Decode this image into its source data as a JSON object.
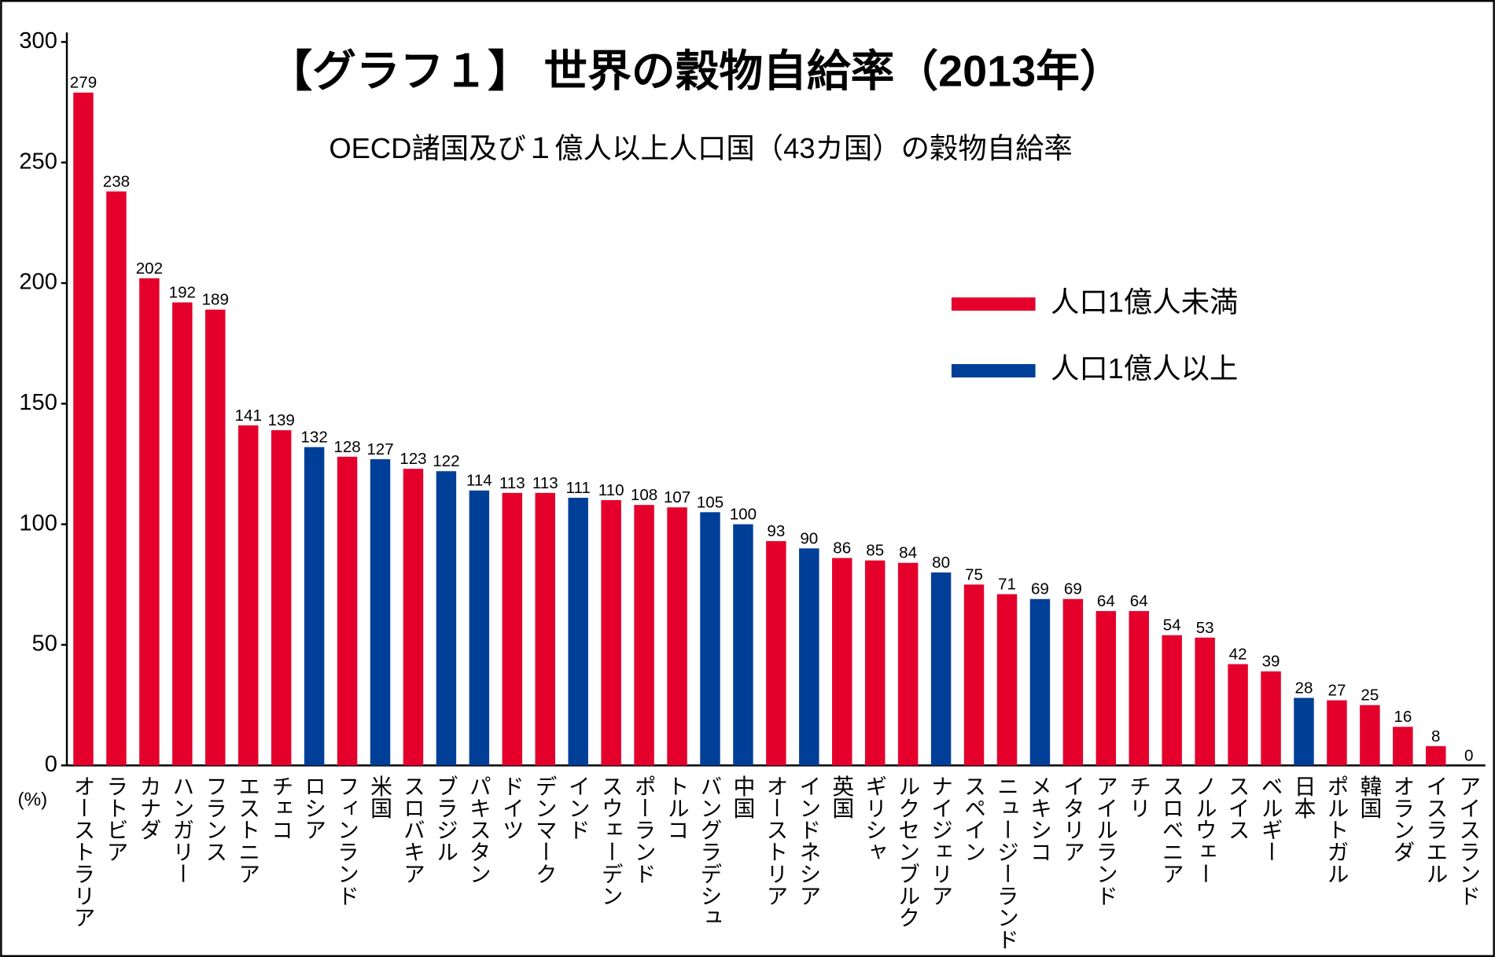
{
  "chart_data": {
    "type": "bar",
    "title": "【グラフ１】 世界の穀物自給率（2013年）",
    "subtitle": "OECD諸国及び１億人以上人口国（43カ国）の穀物自給率",
    "y_unit_label": "(%)",
    "categories": [
      "オーストラリア",
      "ラトビア",
      "カナダ",
      "ハンガリー",
      "フランス",
      "エストニア",
      "チェコ",
      "ロシア",
      "フィンランド",
      "米国",
      "スロバキア",
      "ブラジル",
      "パキスタン",
      "ドイツ",
      "デンマーク",
      "インド",
      "スウェーデン",
      "ポーランド",
      "トルコ",
      "バングラデシュ",
      "中国",
      "オーストリア",
      "インドネシア",
      "英国",
      "ギリシャ",
      "ルクセンブルク",
      "ナイジェリア",
      "スペイン",
      "ニュージーランド",
      "メキシコ",
      "イタリア",
      "アイルランド",
      "チリ",
      "スロベニア",
      "ノルウェー",
      "スイス",
      "ベルギー",
      "日本",
      "ポルトガル",
      "韓国",
      "オランダ",
      "イスラエル",
      "アイスランド"
    ],
    "series": [
      {
        "name": "人口1億人未満",
        "color": "#e4002b",
        "values": [
          279,
          238,
          202,
          192,
          189,
          141,
          139,
          null,
          128,
          null,
          123,
          null,
          null,
          113,
          113,
          null,
          110,
          108,
          107,
          null,
          null,
          93,
          null,
          86,
          85,
          84,
          null,
          75,
          71,
          null,
          69,
          64,
          64,
          54,
          53,
          42,
          39,
          null,
          27,
          25,
          16,
          8,
          0
        ]
      },
      {
        "name": "人口1億人以上",
        "color": "#003f98",
        "values": [
          null,
          null,
          null,
          null,
          null,
          null,
          null,
          132,
          null,
          127,
          null,
          122,
          114,
          null,
          null,
          111,
          null,
          null,
          null,
          105,
          100,
          null,
          90,
          null,
          null,
          null,
          80,
          null,
          null,
          69,
          null,
          null,
          null,
          null,
          null,
          null,
          null,
          28,
          null,
          null,
          null,
          null,
          null
        ]
      }
    ],
    "ylim": [
      0,
      300
    ],
    "yticks": [
      0,
      50,
      100,
      150,
      200,
      250,
      300
    ]
  }
}
